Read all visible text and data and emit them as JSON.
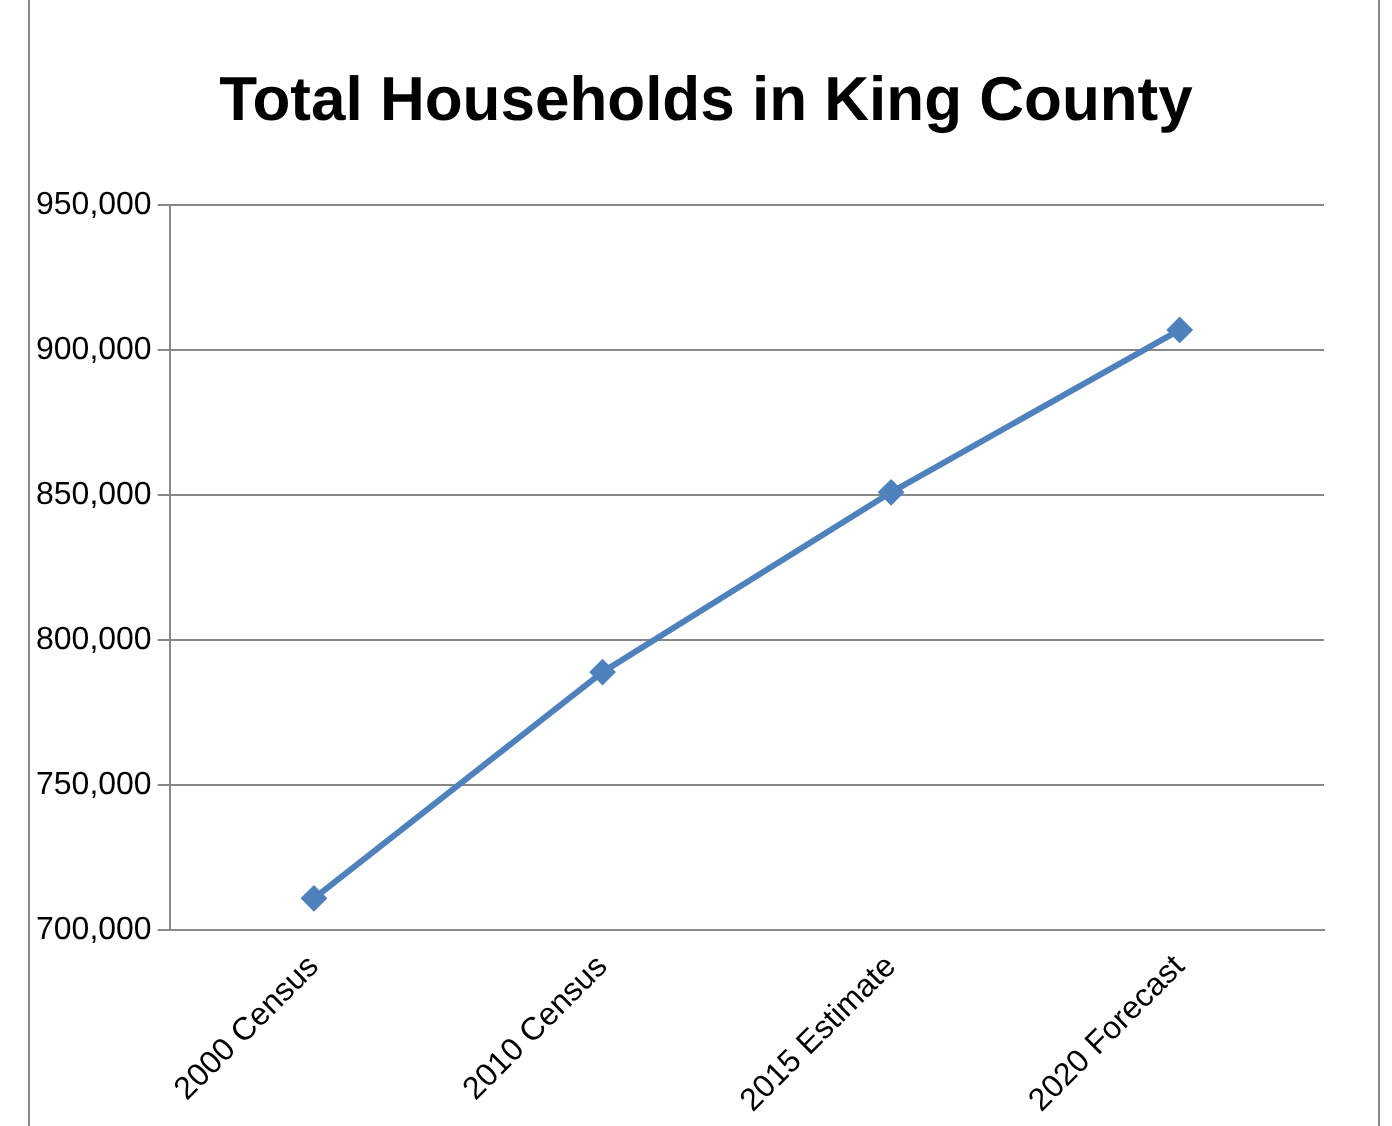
{
  "chart_data": {
    "type": "line",
    "title": "Total Households in King County",
    "categories": [
      "2000 Census",
      "2010 Census",
      "2015 Estimate",
      "2020 Forecast"
    ],
    "series": [
      {
        "color": "#4f81bd",
        "values": [
          711000,
          789000,
          851000,
          907000
        ]
      }
    ],
    "ylim": [
      700000,
      950000
    ],
    "yticks": [
      {
        "value": 700000,
        "label": "700,000"
      },
      {
        "value": 750000,
        "label": "750,000"
      },
      {
        "value": 800000,
        "label": "800,000"
      },
      {
        "value": 850000,
        "label": "850,000"
      },
      {
        "value": 900000,
        "label": "900,000"
      },
      {
        "value": 950000,
        "label": "950,000"
      }
    ],
    "grid": "y",
    "legend": false,
    "marker": "diamond",
    "line_style": "solid"
  }
}
